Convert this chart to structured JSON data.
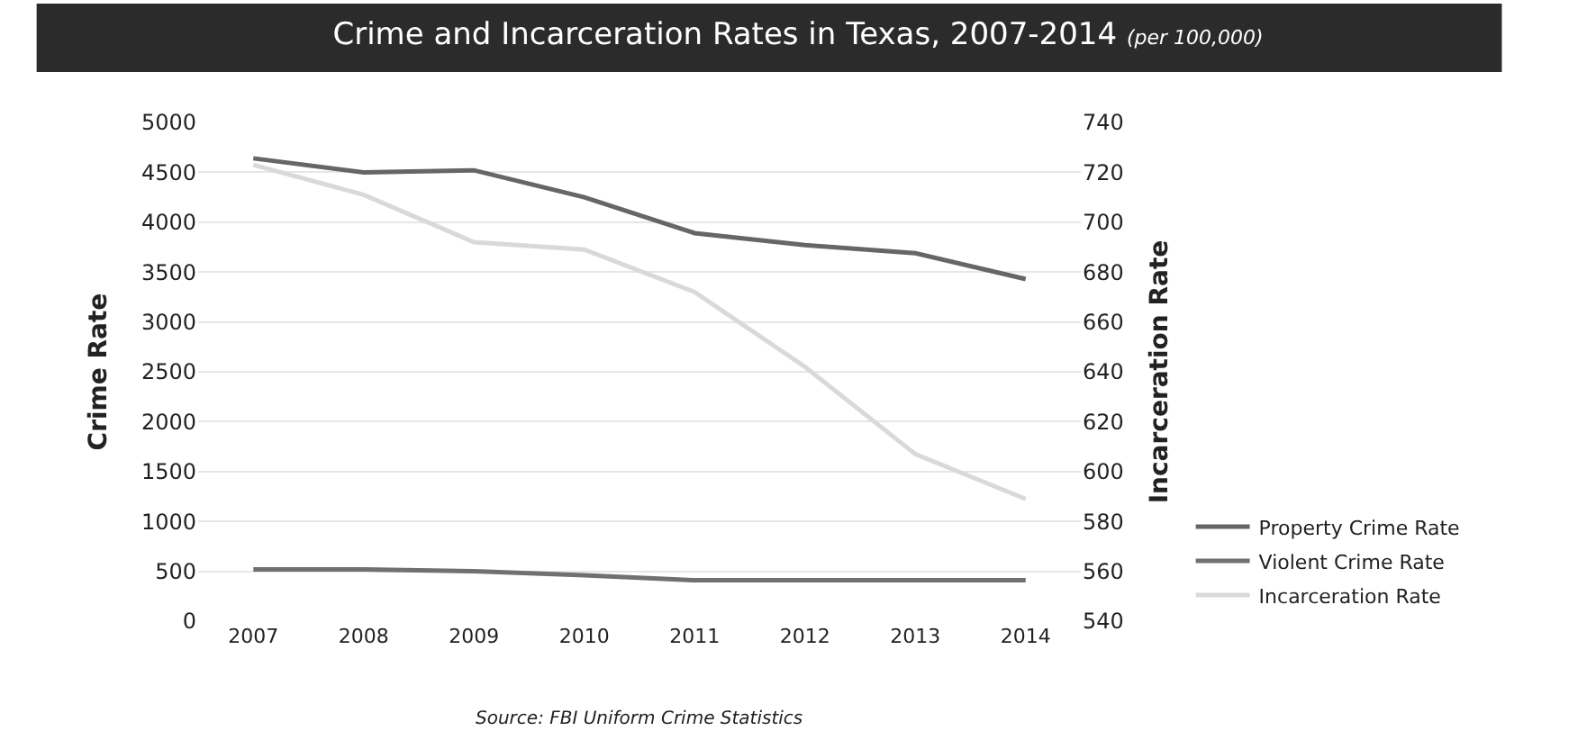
{
  "chart_data": {
    "type": "line",
    "title": "Crime and Incarceration Rates in Texas, 2007-2014",
    "subtitle": "(per 100,000)",
    "ylabel": "Crime Rate",
    "y2label": "Incarceration Rate",
    "categories": [
      "2007",
      "2008",
      "2009",
      "2010",
      "2011",
      "2012",
      "2013",
      "2014"
    ],
    "series": [
      {
        "name": "Property Crime Rate",
        "color": "#666666",
        "values": [
          4640,
          4500,
          4520,
          4250,
          3890,
          3770,
          3690,
          3430
        ]
      },
      {
        "name": "Violent Crime Rate",
        "color": "#707070",
        "values": [
          520,
          520,
          500,
          460,
          410,
          410,
          410,
          410
        ]
      },
      {
        "name": "Incarceration Rate",
        "color": "#d9d9d9",
        "axis": "y2",
        "values": [
          723,
          711,
          692,
          689,
          672,
          642,
          607,
          589
        ]
      }
    ],
    "ylim": [
      0,
      5000
    ],
    "yticks": [
      0,
      500,
      1000,
      1500,
      2000,
      2500,
      3000,
      3500,
      4000,
      4500,
      5000
    ],
    "y2lim": [
      540,
      740
    ],
    "y2ticks": [
      540,
      560,
      580,
      600,
      620,
      640,
      660,
      680,
      700,
      720,
      740
    ],
    "grid": "y",
    "legend": "bottom right",
    "marker": "none",
    "line_style": "solid",
    "annotations": [
      "Source: FBI Uniform Crime Statistics"
    ]
  }
}
